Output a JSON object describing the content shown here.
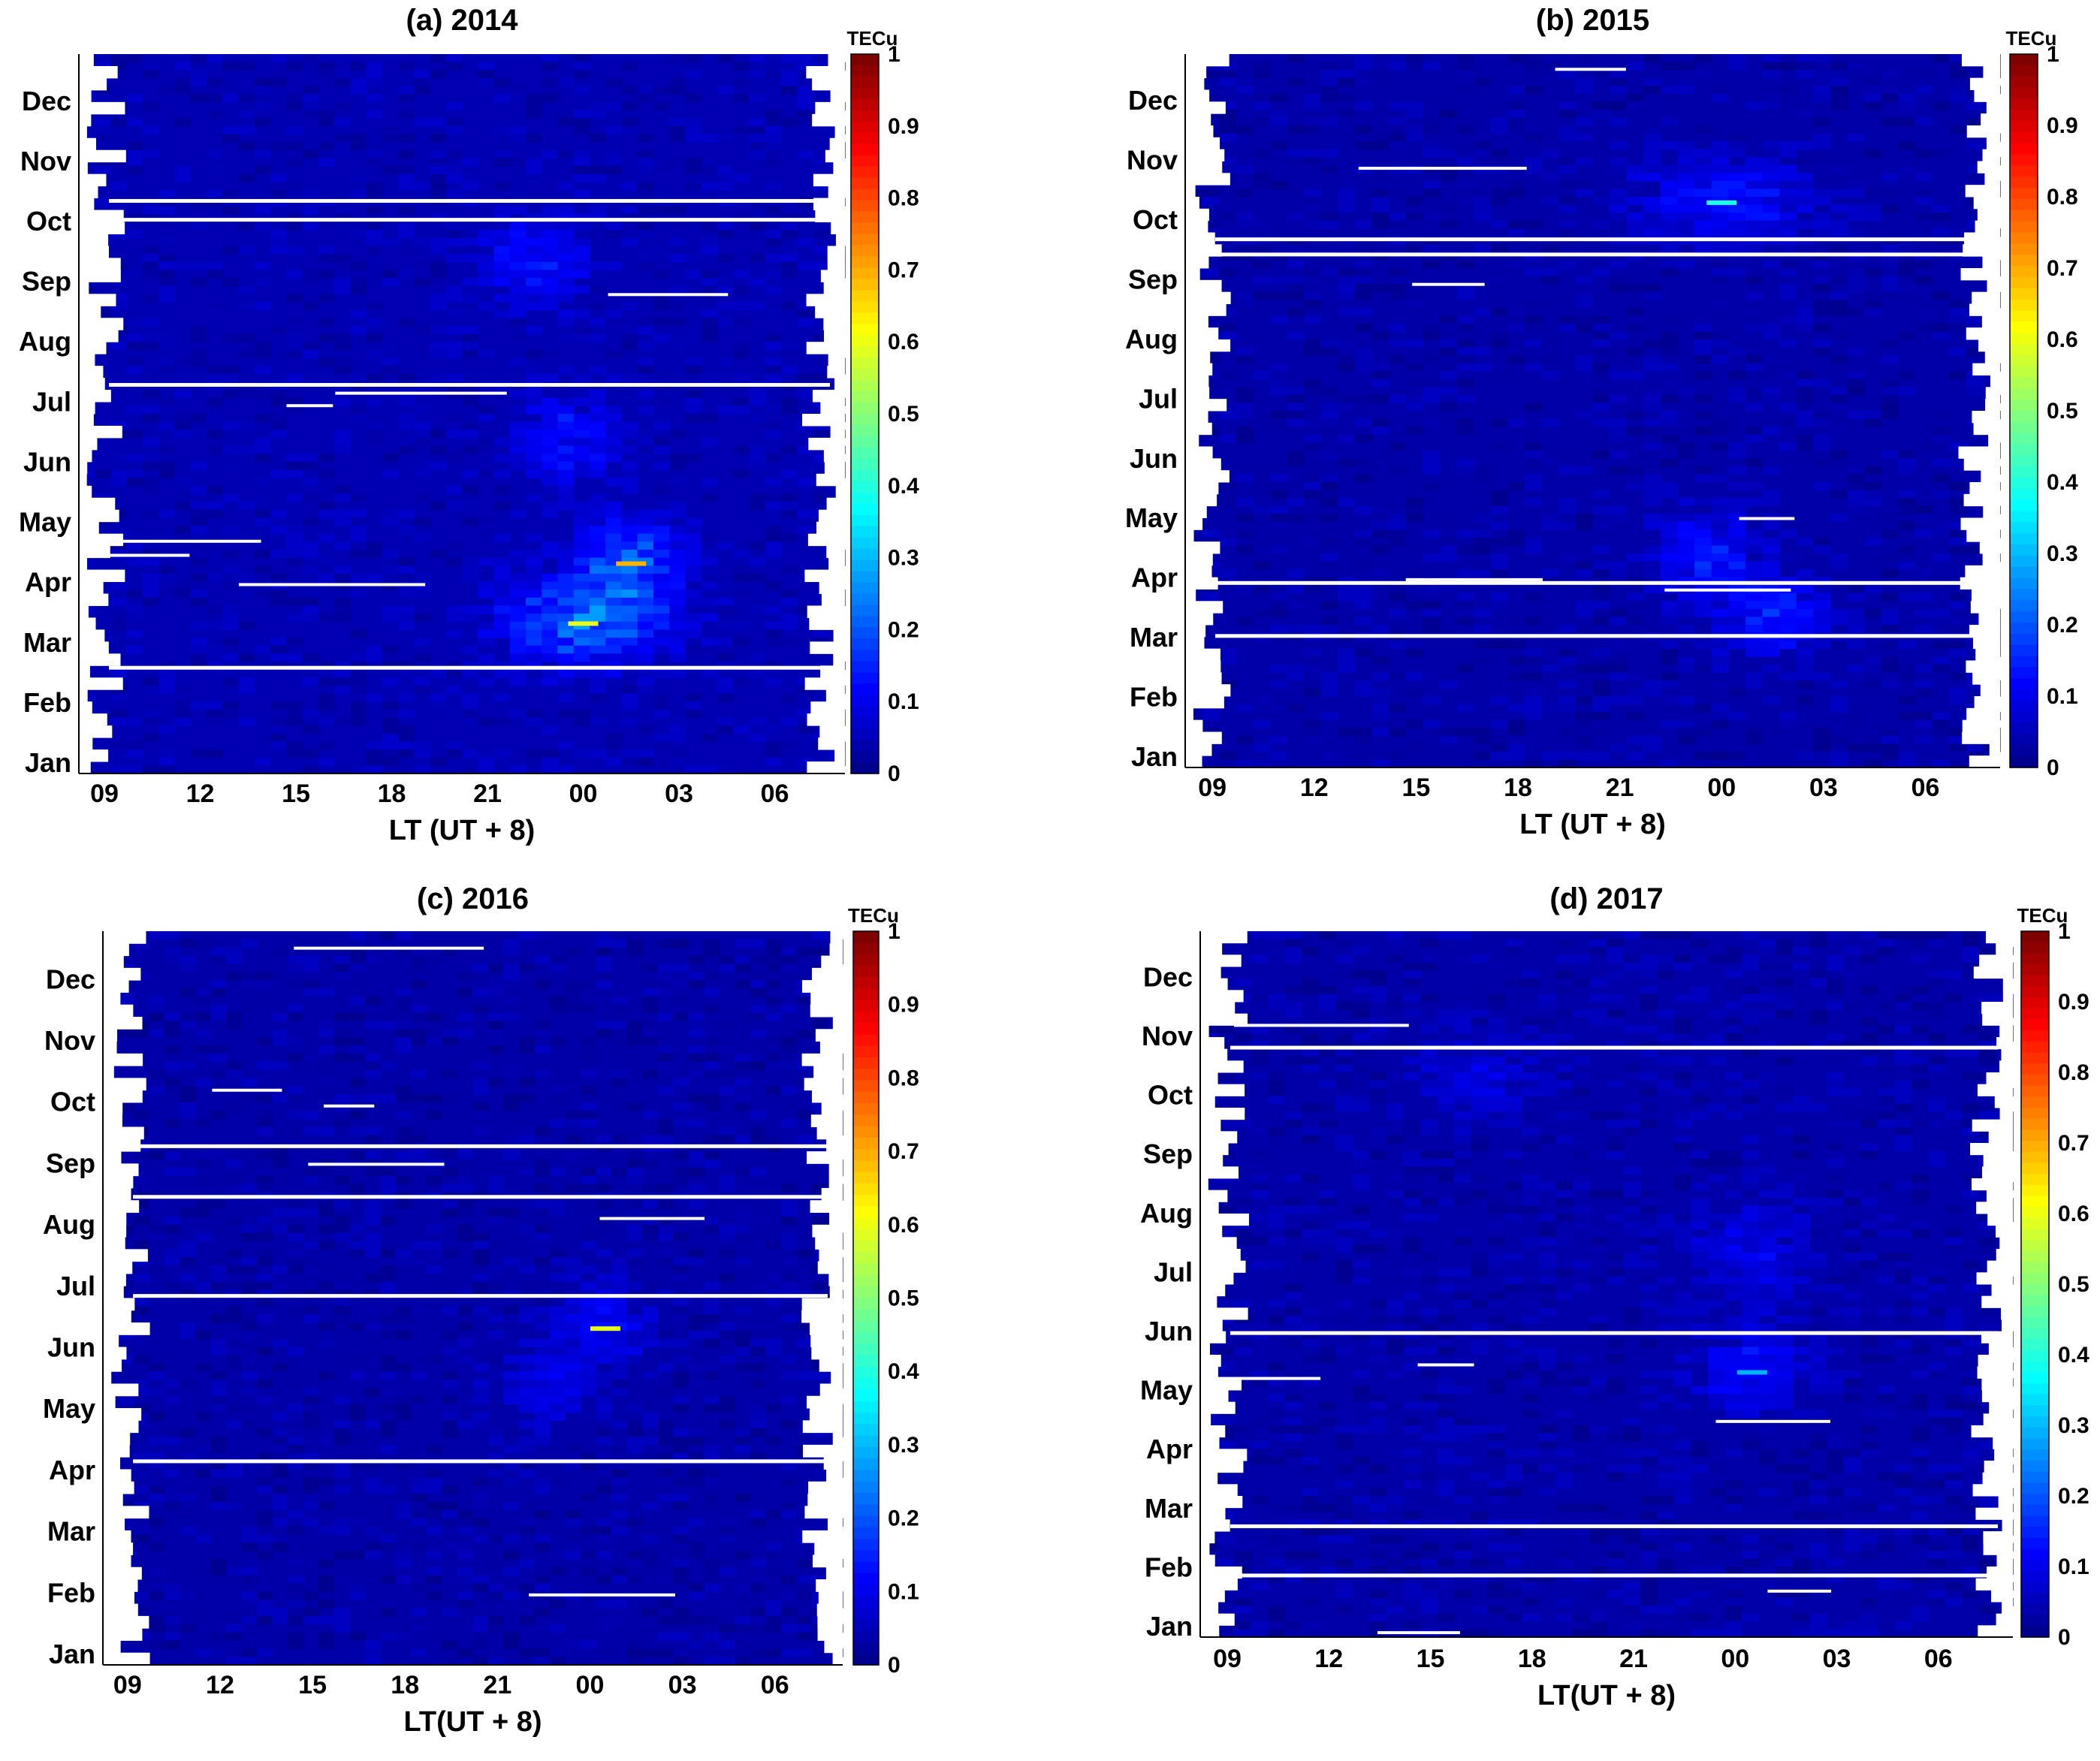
{
  "figure": {
    "colorbar_unit": "TECu",
    "colormap": "jet",
    "panels": [
      {
        "title": "(a) 2014",
        "xlabel": "LT (UT + 8)"
      },
      {
        "title": "(b) 2015",
        "xlabel": "LT (UT + 8)"
      },
      {
        "title": "(c) 2016",
        "xlabel": "LT(UT + 8)"
      },
      {
        "title": "(d) 2017",
        "xlabel": "LT(UT + 8)"
      }
    ]
  },
  "chart_data": [
    {
      "type": "heatmap",
      "title": "(a) 2014",
      "xlabel": "LT (UT + 8)",
      "ylabel": "",
      "x_tick_labels": [
        "09",
        "12",
        "15",
        "18",
        "21",
        "00",
        "03",
        "06"
      ],
      "y_tick_labels": [
        "Jan",
        "Feb",
        "Mar",
        "Apr",
        "May",
        "Jun",
        "Jul",
        "Aug",
        "Sep",
        "Oct",
        "Nov",
        "Dec"
      ],
      "colorbar": {
        "label": "TECu",
        "range": [
          0,
          1
        ],
        "ticks": [
          "0",
          "0.1",
          "0.2",
          "0.3",
          "0.4",
          "0.5",
          "0.6",
          "0.7",
          "0.8",
          "0.9",
          "1"
        ]
      },
      "background_value": 0.05,
      "enhancement_regions": [
        {
          "month": "Mar",
          "local_time": "21-03",
          "approx_value": 0.25
        },
        {
          "month": "Apr",
          "local_time": "00-03",
          "approx_value": 0.2
        },
        {
          "month": "Jun",
          "local_time": "22-01",
          "approx_value": 0.15
        },
        {
          "month": "Sep",
          "local_time": "21-00",
          "approx_value": 0.15
        }
      ],
      "peak_values": [
        0.6,
        0.7
      ]
    },
    {
      "type": "heatmap",
      "title": "(b) 2015",
      "xlabel": "LT (UT + 8)",
      "ylabel": "",
      "x_tick_labels": [
        "09",
        "12",
        "15",
        "18",
        "21",
        "00",
        "03",
        "06"
      ],
      "y_tick_labels": [
        "Jan",
        "Feb",
        "Mar",
        "Apr",
        "May",
        "Jun",
        "Jul",
        "Aug",
        "Sep",
        "Oct",
        "Nov",
        "Dec"
      ],
      "colorbar": {
        "label": "TECu",
        "range": [
          0,
          1
        ],
        "ticks": [
          "0",
          "0.1",
          "0.2",
          "0.3",
          "0.4",
          "0.5",
          "0.6",
          "0.7",
          "0.8",
          "0.9",
          "1"
        ]
      },
      "background_value": 0.04,
      "enhancement_regions": [
        {
          "month": "Oct",
          "local_time": "21-03",
          "approx_value": 0.15
        },
        {
          "month": "Apr",
          "local_time": "22-01",
          "approx_value": 0.15
        },
        {
          "month": "Mar",
          "local_time": "00-03",
          "approx_value": 0.15
        }
      ],
      "peak_values": [
        0.4
      ]
    },
    {
      "type": "heatmap",
      "title": "(c) 2016",
      "xlabel": "LT(UT + 8)",
      "ylabel": "",
      "x_tick_labels": [
        "09",
        "12",
        "15",
        "18",
        "21",
        "00",
        "03",
        "06"
      ],
      "y_tick_labels": [
        "Jan",
        "Feb",
        "Mar",
        "Apr",
        "May",
        "Jun",
        "Jul",
        "Aug",
        "Sep",
        "Oct",
        "Nov",
        "Dec"
      ],
      "colorbar": {
        "label": "TECu",
        "range": [
          0,
          1
        ],
        "ticks": [
          "0",
          "0.1",
          "0.2",
          "0.3",
          "0.4",
          "0.5",
          "0.6",
          "0.7",
          "0.8",
          "0.9",
          "1"
        ]
      },
      "background_value": 0.04,
      "enhancement_regions": [
        {
          "month": "Jun",
          "local_time": "23-02",
          "approx_value": 0.12
        },
        {
          "month": "May",
          "local_time": "21-00",
          "approx_value": 0.1
        }
      ],
      "peak_values": [
        0.6
      ]
    },
    {
      "type": "heatmap",
      "title": "(d) 2017",
      "xlabel": "LT(UT + 8)",
      "ylabel": "",
      "x_tick_labels": [
        "09",
        "12",
        "15",
        "18",
        "21",
        "00",
        "03",
        "06"
      ],
      "y_tick_labels": [
        "Jan",
        "Feb",
        "Mar",
        "Apr",
        "May",
        "Jun",
        "Jul",
        "Aug",
        "Sep",
        "Oct",
        "Nov",
        "Dec"
      ],
      "colorbar": {
        "label": "TECu",
        "range": [
          0,
          1
        ],
        "ticks": [
          "0",
          "0.1",
          "0.2",
          "0.3",
          "0.4",
          "0.5",
          "0.6",
          "0.7",
          "0.8",
          "0.9",
          "1"
        ]
      },
      "background_value": 0.04,
      "enhancement_regions": [
        {
          "month": "May",
          "local_time": "23-02",
          "approx_value": 0.15
        },
        {
          "month": "Jul",
          "local_time": "23-02",
          "approx_value": 0.12
        },
        {
          "month": "Oct",
          "local_time": "15-18",
          "approx_value": 0.1
        }
      ],
      "peak_values": [
        0.3
      ]
    }
  ]
}
